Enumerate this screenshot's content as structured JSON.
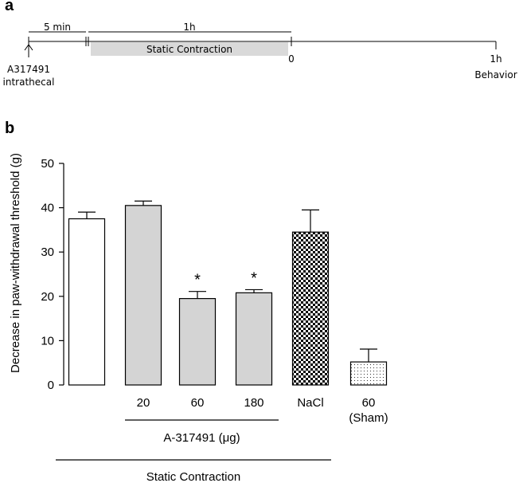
{
  "panel_a": {
    "label": "a",
    "interval_1": "5 min",
    "interval_2": "1h",
    "bar_label": "Static Contraction",
    "injection_label_line1": "A317491",
    "injection_label_line2": "intrathecal",
    "time_zero": "0",
    "time_end": "1h",
    "end_label": "Behavior",
    "shaded_color": "#d9d9d9"
  },
  "panel_b": {
    "label": "b"
  },
  "chart_data": {
    "type": "bar",
    "title": "",
    "ylabel": "Decrease in paw-withdrawal threshold (g)",
    "xlabel": "",
    "ylim": [
      0,
      50
    ],
    "yticks": [
      0,
      10,
      20,
      30,
      40,
      50
    ],
    "categories": [
      "",
      "20",
      "60",
      "180",
      "NaCl",
      "60 (Sham)"
    ],
    "category_lines": [
      [
        ""
      ],
      [
        "20"
      ],
      [
        "60"
      ],
      [
        "180"
      ],
      [
        "NaCl"
      ],
      [
        "60",
        "(Sham)"
      ]
    ],
    "values": [
      37.5,
      40.5,
      19.5,
      20.8,
      34.5,
      5.2
    ],
    "errors": [
      1.5,
      1.0,
      1.6,
      0.7,
      5.0,
      2.9
    ],
    "fills": [
      "white",
      "gray",
      "gray",
      "gray",
      "checker",
      "dots"
    ],
    "significance": [
      "",
      "",
      "*",
      "*",
      "",
      ""
    ],
    "groups": [
      {
        "label": "A-317491 (μg)",
        "from": 1,
        "to": 3
      },
      {
        "label": "Static Contraction",
        "from": 0,
        "to": 4
      }
    ],
    "gray_fill": "#d4d4d4"
  }
}
